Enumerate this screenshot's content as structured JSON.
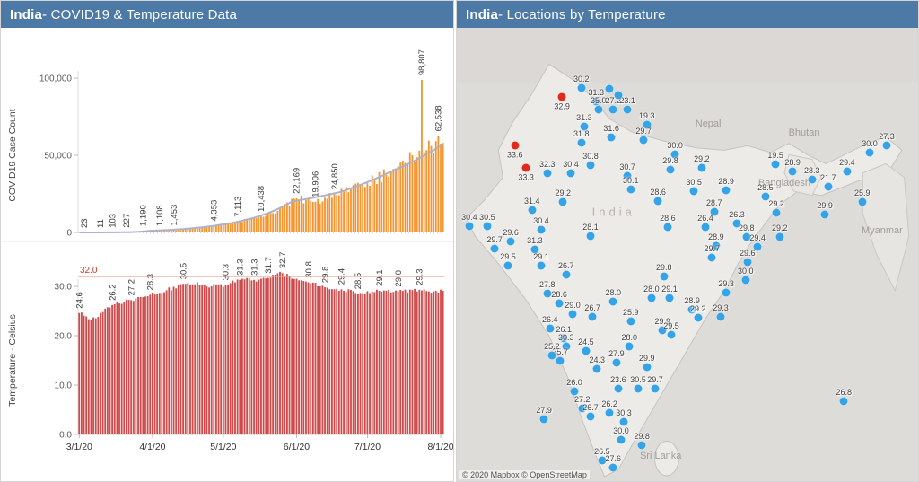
{
  "left_panel": {
    "title_bold": "India",
    "title_rest": " - COVID19 & Temperature Data"
  },
  "right_panel": {
    "title_bold": "India",
    "title_rest": " - Locations by Temperature"
  },
  "chart_data": [
    {
      "type": "bar",
      "title": "COVID19 Case Count",
      "ylabel": "COVID19 Case Count",
      "mark_name": "covid-case-bar",
      "bar_color": "#f59532",
      "trend_color": "#a9afc9",
      "log": true,
      "days": 155,
      "ylim": [
        0,
        115000
      ],
      "y_ticks": [
        {
          "v": 0,
          "label": "0"
        },
        {
          "v": 50000,
          "label": "50,000"
        },
        {
          "v": 100000,
          "label": "100,000"
        }
      ],
      "x_ticks": [
        {
          "day": 0,
          "label": "3/1/20"
        },
        {
          "day": 31,
          "label": "4/1/20"
        },
        {
          "day": 61,
          "label": "5/1/20"
        },
        {
          "day": 92,
          "label": "6/1/20"
        },
        {
          "day": 122,
          "label": "7/1/20"
        },
        {
          "day": 153,
          "label": "8/1/20"
        }
      ],
      "anchors": [
        [
          2,
          23,
          "23"
        ],
        [
          9,
          11,
          "11"
        ],
        [
          14,
          103,
          "103"
        ],
        [
          20,
          227,
          "227"
        ],
        [
          27,
          1190,
          "1,190"
        ],
        [
          34,
          1108,
          "1,108"
        ],
        [
          40,
          1453,
          "1,453"
        ],
        [
          57,
          4353,
          "4,353"
        ],
        [
          67,
          7113,
          "7,113"
        ],
        [
          77,
          10438,
          "10,438"
        ],
        [
          92,
          22169,
          "22,169"
        ],
        [
          100,
          19906,
          "19,906"
        ],
        [
          108,
          24850,
          "24,850"
        ],
        [
          145,
          98807,
          "98,807"
        ],
        [
          152,
          62538,
          "62,538"
        ]
      ],
      "shape_anchors": [
        [
          0,
          5
        ],
        [
          5,
          8
        ],
        [
          12,
          40
        ],
        [
          17,
          150
        ],
        [
          23,
          500
        ],
        [
          30,
          1150
        ],
        [
          37,
          1250
        ],
        [
          44,
          1800
        ],
        [
          50,
          2600
        ],
        [
          62,
          5400
        ],
        [
          72,
          8500
        ],
        [
          84,
          14000
        ],
        [
          96,
          21000
        ],
        [
          104,
          22500
        ],
        [
          115,
          28000
        ],
        [
          125,
          34000
        ],
        [
          135,
          43000
        ],
        [
          141,
          50000
        ],
        [
          144,
          53000
        ],
        [
          146,
          52000
        ],
        [
          149,
          56000
        ],
        [
          154,
          58000
        ]
      ],
      "trend_anchors": [
        [
          0,
          3
        ],
        [
          30,
          1100
        ],
        [
          60,
          5000
        ],
        [
          90,
          20000
        ],
        [
          110,
          26000
        ],
        [
          130,
          38000
        ],
        [
          154,
          57000
        ]
      ]
    },
    {
      "type": "bar",
      "title": "Temperature - Celsius",
      "ylabel": "Temperature - Celsius",
      "mark_name": "temperature-bar",
      "bar_color": "#cf4b4b",
      "log": false,
      "days": 155,
      "ylim": [
        0,
        35
      ],
      "y_ticks": [
        {
          "v": 0,
          "label": "0.0"
        },
        {
          "v": 10,
          "label": "10.0"
        },
        {
          "v": 20,
          "label": "20.0"
        },
        {
          "v": 30,
          "label": "30.0"
        }
      ],
      "reference_line": {
        "value": 32.0,
        "label": "32.0",
        "line_color": "#f0a096",
        "label_color": "#cc3a2c"
      },
      "anchors": [
        [
          0,
          24.6,
          "24.6"
        ],
        [
          14,
          26.2,
          "26.2"
        ],
        [
          22,
          27.2,
          "27.2"
        ],
        [
          30,
          28.3,
          "28.3"
        ],
        [
          44,
          30.5,
          "30.5"
        ],
        [
          62,
          30.3,
          "30.3"
        ],
        [
          68,
          31.3,
          "31.3"
        ],
        [
          74,
          31.3,
          "31.3"
        ],
        [
          80,
          31.7,
          "31.7"
        ],
        [
          86,
          32.7,
          "32.7"
        ],
        [
          97,
          30.8,
          "30.8"
        ],
        [
          104,
          29.8,
          "29.8"
        ],
        [
          111,
          29.4,
          "29.4"
        ],
        [
          118,
          28.5,
          "28.5"
        ],
        [
          127,
          29.1,
          "29.1"
        ],
        [
          135,
          29.0,
          "29.0"
        ],
        [
          144,
          29.3,
          "29.3"
        ]
      ],
      "shape_anchors": [
        [
          5,
          23.2
        ],
        [
          10,
          24.8
        ],
        [
          37,
          29.2
        ],
        [
          50,
          30.8
        ],
        [
          56,
          30.0
        ],
        [
          91,
          31.5
        ],
        [
          150,
          29.0
        ],
        [
          154,
          29.1
        ]
      ]
    },
    {
      "type": "scatter",
      "title": "India - Locations by Temperature",
      "attribution": "© 2020 Mapbox © OpenStreetMap",
      "dot_colors": {
        "blue": "#35a3e8",
        "red": "#e02a1c"
      },
      "region_labels": [
        {
          "text": "Nepal",
          "x": 54.5,
          "y": 21.1
        },
        {
          "text": "Bhutan",
          "x": 75.3,
          "y": 23.1
        },
        {
          "text": "Bangladesh",
          "x": 71.0,
          "y": 34.3
        },
        {
          "text": "Myanmar",
          "x": 92.2,
          "y": 44.8
        },
        {
          "text": "Sri Lanka",
          "x": 44.2,
          "y": 94.5
        },
        {
          "text": "India",
          "x": 34.0,
          "y": 40.5,
          "big": true
        }
      ],
      "points": [
        [
          27.0,
          13.2,
          "30.2"
        ],
        [
          30.2,
          16.2,
          "31.3"
        ],
        [
          30.7,
          18.1,
          "35.0"
        ],
        [
          33.9,
          18.1,
          "27.2"
        ],
        [
          37.0,
          18.1,
          "23.1"
        ],
        [
          35.0,
          14.8,
          ""
        ],
        [
          33.0,
          13.4,
          ""
        ],
        [
          41.2,
          21.3,
          "19.3"
        ],
        [
          22.8,
          15.2,
          "32.9",
          "red"
        ],
        [
          27.6,
          21.7,
          "31.3"
        ],
        [
          27.0,
          25.4,
          "31.8"
        ],
        [
          33.5,
          24.1,
          "31.6"
        ],
        [
          40.5,
          24.7,
          "29.7"
        ],
        [
          12.6,
          26.0,
          "33.6",
          "red"
        ],
        [
          19.6,
          32.1,
          "32.3"
        ],
        [
          24.7,
          32.0,
          "30.4"
        ],
        [
          29.0,
          30.2,
          "30.8"
        ],
        [
          15.0,
          30.8,
          "33.3",
          "red"
        ],
        [
          37.0,
          32.7,
          "30.7"
        ],
        [
          47.3,
          28.0,
          "30.0"
        ],
        [
          46.3,
          31.2,
          "29.8"
        ],
        [
          53.1,
          30.8,
          "29.2"
        ],
        [
          69.1,
          30.0,
          "19.5"
        ],
        [
          72.8,
          31.6,
          "28.9"
        ],
        [
          77.0,
          33.5,
          "28.3"
        ],
        [
          84.6,
          31.6,
          "29.4"
        ],
        [
          89.5,
          27.6,
          "30.0"
        ],
        [
          93.2,
          26.0,
          "27.3"
        ],
        [
          80.5,
          35.1,
          "21.7"
        ],
        [
          87.9,
          38.5,
          "25.9"
        ],
        [
          79.8,
          41.2,
          "29.9"
        ],
        [
          37.7,
          35.7,
          "30.1"
        ],
        [
          23.0,
          38.5,
          "29.2"
        ],
        [
          16.3,
          40.2,
          "31.4"
        ],
        [
          51.4,
          36.1,
          "30.5"
        ],
        [
          58.4,
          35.9,
          "28.9"
        ],
        [
          43.6,
          38.3,
          "28.6"
        ],
        [
          66.9,
          37.3,
          "28.5"
        ],
        [
          69.3,
          40.8,
          "29.2"
        ],
        [
          55.8,
          40.6,
          "28.7"
        ],
        [
          60.7,
          43.2,
          "26.3"
        ],
        [
          18.3,
          44.6,
          "30.4"
        ],
        [
          2.7,
          43.8,
          "30.4"
        ],
        [
          6.6,
          43.8,
          "30.5"
        ],
        [
          11.7,
          47.1,
          "29.6"
        ],
        [
          8.2,
          48.7,
          "29.7"
        ],
        [
          16.9,
          48.9,
          "31.3"
        ],
        [
          29.0,
          46.0,
          "28.1"
        ],
        [
          45.7,
          44.0,
          "28.6"
        ],
        [
          53.9,
          44.0,
          "26.4"
        ],
        [
          11.1,
          52.5,
          "29.5"
        ],
        [
          18.3,
          52.5,
          "29.1"
        ],
        [
          56.2,
          48.1,
          "28.9"
        ],
        [
          55.3,
          50.7,
          "29.7"
        ],
        [
          62.8,
          46.2,
          "29.8"
        ],
        [
          65.2,
          48.3,
          "29.4"
        ],
        [
          70.0,
          46.2,
          "29.2"
        ],
        [
          63.0,
          51.7,
          "29.6"
        ],
        [
          58.4,
          58.4,
          "29.3"
        ],
        [
          62.6,
          55.6,
          "30.0"
        ],
        [
          44.9,
          54.8,
          "29.8"
        ],
        [
          42.2,
          59.6,
          "28.0"
        ],
        [
          46.1,
          59.6,
          "29.1"
        ],
        [
          23.7,
          54.4,
          "26.7"
        ],
        [
          19.6,
          58.6,
          "27.8"
        ],
        [
          22.2,
          60.7,
          "28.6"
        ],
        [
          25.1,
          63.1,
          "29.0"
        ],
        [
          29.4,
          63.7,
          "26.7"
        ],
        [
          37.7,
          64.7,
          "25.9"
        ],
        [
          33.9,
          60.4,
          "28.0"
        ],
        [
          51.0,
          62.1,
          "28.9"
        ],
        [
          57.2,
          63.7,
          "29.3"
        ],
        [
          52.3,
          63.9,
          "29.2"
        ],
        [
          44.6,
          66.7,
          "29.9"
        ],
        [
          46.5,
          67.8,
          "29.5"
        ],
        [
          20.2,
          66.3,
          "26.4"
        ],
        [
          23.2,
          68.6,
          "26.1"
        ],
        [
          23.7,
          70.2,
          "30.3"
        ],
        [
          28.0,
          71.2,
          "24.5"
        ],
        [
          37.4,
          70.2,
          "28.0"
        ],
        [
          22.4,
          73.4,
          "25.7"
        ],
        [
          34.6,
          73.8,
          "27.9"
        ],
        [
          30.4,
          75.3,
          "24.3"
        ],
        [
          41.2,
          74.8,
          "29.9"
        ],
        [
          20.6,
          72.2,
          "25.2"
        ],
        [
          25.5,
          80.1,
          "26.0"
        ],
        [
          35.0,
          79.7,
          "23.6"
        ],
        [
          39.3,
          79.7,
          "30.5"
        ],
        [
          43.0,
          79.7,
          "29.7"
        ],
        [
          18.9,
          86.4,
          "27.9"
        ],
        [
          27.2,
          84.0,
          "27.2"
        ],
        [
          29.0,
          85.8,
          "26.7"
        ],
        [
          33.1,
          85.0,
          "26.2"
        ],
        [
          36.2,
          87.0,
          "30.3"
        ],
        [
          35.6,
          90.9,
          "30.0"
        ],
        [
          40.1,
          92.1,
          "29.8"
        ],
        [
          31.5,
          95.5,
          "26.5"
        ],
        [
          33.9,
          97.0,
          "27.6"
        ],
        [
          83.9,
          82.4,
          "26.8"
        ]
      ]
    }
  ]
}
